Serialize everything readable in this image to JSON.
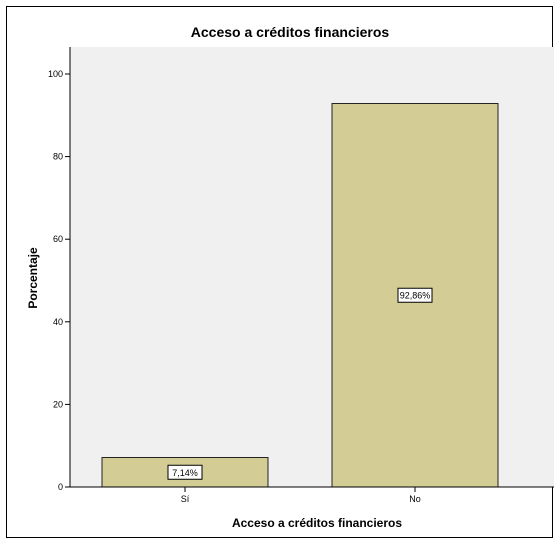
{
  "chart_data": {
    "type": "bar",
    "title": "Acceso a créditos financieros",
    "xlabel": "Acceso a créditos financieros",
    "ylabel": "Porcentaje",
    "categories": [
      "Sí",
      "No"
    ],
    "values": [
      7.14,
      92.86
    ],
    "data_labels": [
      "7,14%",
      "92,86%"
    ],
    "ylim": [
      0,
      100
    ],
    "yticks": [
      0,
      20,
      40,
      60,
      80,
      100
    ],
    "ytick_labels": [
      "0",
      "20",
      "40",
      "60",
      "80",
      "100"
    ],
    "grid": false,
    "legend": "none",
    "colors": {
      "bar_fill": "#d3cd95",
      "bar_stroke": "#222222",
      "plot_background": "#f0f0f0",
      "axis": "#000000"
    }
  }
}
